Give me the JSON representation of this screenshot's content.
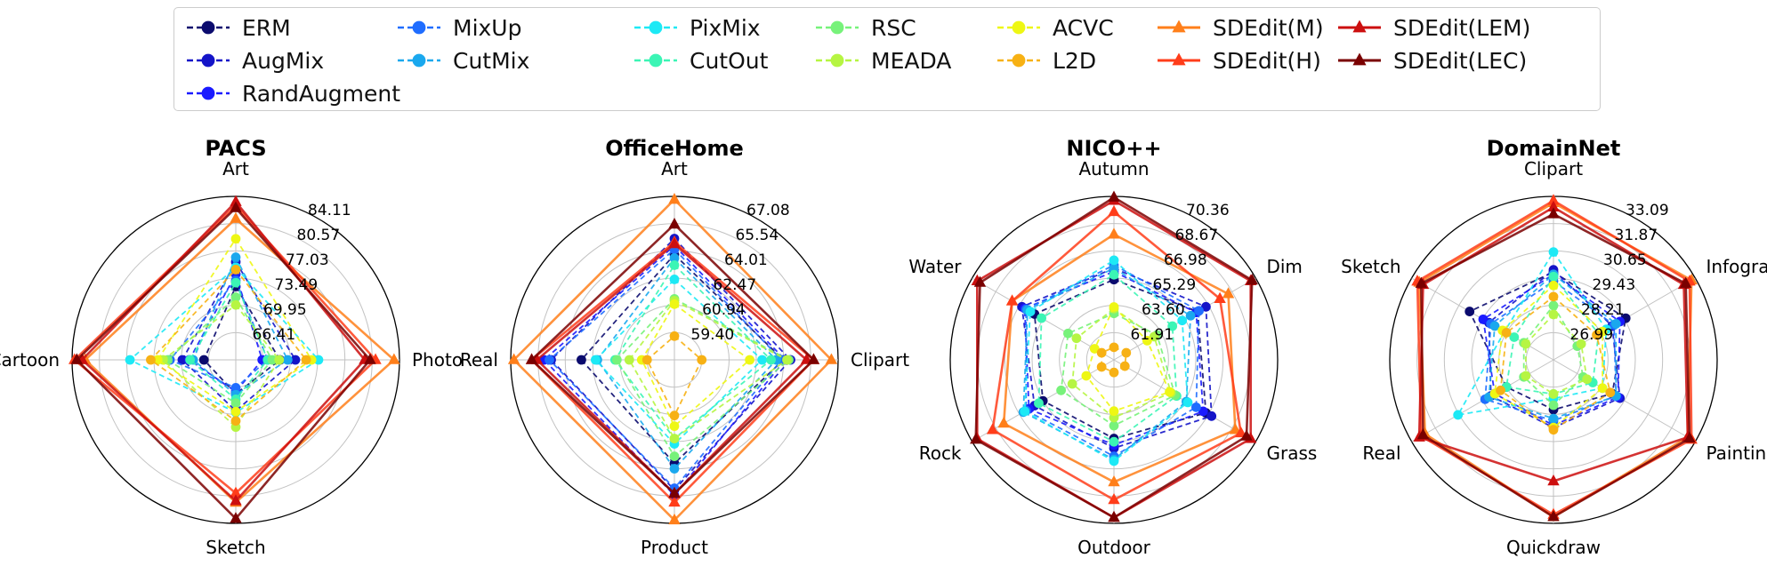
{
  "legend": [
    {
      "name": "ERM",
      "color": "#0b0b6e",
      "style": "dashed",
      "marker": "circle"
    },
    {
      "name": "AugMix",
      "color": "#1414c8",
      "style": "dashed",
      "marker": "circle"
    },
    {
      "name": "RandAugment",
      "color": "#1a1aff",
      "style": "dashed",
      "marker": "circle"
    },
    {
      "name": "MixUp",
      "color": "#1f6dff",
      "style": "dashed",
      "marker": "circle"
    },
    {
      "name": "CutMix",
      "color": "#1aa8ee",
      "style": "dashed",
      "marker": "circle"
    },
    {
      "name": "PixMix",
      "color": "#1de9f5",
      "style": "dashed",
      "marker": "circle"
    },
    {
      "name": "CutOut",
      "color": "#3bf5b5",
      "style": "dashed",
      "marker": "circle"
    },
    {
      "name": "RSC",
      "color": "#77f27a",
      "style": "dashed",
      "marker": "circle"
    },
    {
      "name": "MEADA",
      "color": "#b6f542",
      "style": "dashed",
      "marker": "circle"
    },
    {
      "name": "ACVC",
      "color": "#eef714",
      "style": "dashed",
      "marker": "circle"
    },
    {
      "name": "L2D",
      "color": "#f7b114",
      "style": "dashed",
      "marker": "circle"
    },
    {
      "name": "SDEdit(M)",
      "color": "#ff7f1a",
      "style": "solid",
      "marker": "triangle"
    },
    {
      "name": "SDEdit(H)",
      "color": "#ff3d1a",
      "style": "solid",
      "marker": "triangle"
    },
    {
      "name": "SDEdit(LEM)",
      "color": "#cc0f0f",
      "style": "solid",
      "marker": "triangle"
    },
    {
      "name": "SDEdit(LEC)",
      "color": "#7a0000",
      "style": "solid",
      "marker": "triangle"
    }
  ],
  "chart_data": [
    {
      "type": "radar",
      "title": "PACS",
      "axes": [
        "Art",
        "Photo",
        "Sketch",
        "Cartoon"
      ],
      "r_ticks": [
        "66.41",
        "69.95",
        "73.49",
        "77.03",
        "80.57",
        "84.11"
      ],
      "rlim": [
        62.87,
        84.11
      ],
      "grid": true,
      "series": [
        {
          "name": "ERM",
          "values": [
            72.4,
            68.6,
            67.3,
            67.0
          ]
        },
        {
          "name": "AugMix",
          "values": [
            75.6,
            70.6,
            69.5,
            69.8
          ]
        },
        {
          "name": "RandAugment",
          "values": [
            74.0,
            66.3,
            67.0,
            68.9
          ]
        },
        {
          "name": "MixUp",
          "values": [
            73.2,
            67.0,
            66.5,
            71.4
          ]
        },
        {
          "name": "CutMix",
          "values": [
            76.2,
            69.6,
            67.4,
            68.4
          ]
        },
        {
          "name": "PixMix",
          "values": [
            74.9,
            73.6,
            69.7,
            76.6
          ]
        },
        {
          "name": "CutOut",
          "values": [
            72.9,
            67.0,
            68.0,
            68.8
          ]
        },
        {
          "name": "RSC",
          "values": [
            71.0,
            67.6,
            68.5,
            71.7
          ]
        },
        {
          "name": "MEADA",
          "values": [
            70.0,
            68.5,
            71.6,
            72.3
          ]
        },
        {
          "name": "ACVC",
          "values": [
            78.6,
            72.7,
            69.6,
            73.0
          ]
        },
        {
          "name": "L2D",
          "values": [
            74.6,
            72.0,
            70.8,
            73.9
          ]
        },
        {
          "name": "SDEdit(M)",
          "values": [
            81.2,
            83.4,
            81.4,
            82.4
          ]
        },
        {
          "name": "SDEdit(H)",
          "values": [
            82.9,
            81.0,
            80.2,
            83.8
          ]
        },
        {
          "name": "SDEdit(LEM)",
          "values": [
            83.4,
            79.6,
            81.2,
            82.8
          ]
        },
        {
          "name": "SDEdit(LEC)",
          "values": [
            82.6,
            80.3,
            83.5,
            83.5
          ]
        }
      ]
    },
    {
      "type": "radar",
      "title": "OfficeHome",
      "axes": [
        "Art",
        "Clipart",
        "Product",
        "Real"
      ],
      "r_ticks": [
        "59.40",
        "60.94",
        "62.47",
        "64.01",
        "65.54",
        "67.08"
      ],
      "rlim": [
        57.86,
        67.08
      ],
      "grid": true,
      "series": [
        {
          "name": "ERM",
          "values": [
            63.8,
            64.0,
            63.7,
            63.1
          ]
        },
        {
          "name": "AugMix",
          "values": [
            64.7,
            64.4,
            65.2,
            64.8
          ]
        },
        {
          "name": "RandAugment",
          "values": [
            64.3,
            64.1,
            65.5,
            65.2
          ]
        },
        {
          "name": "MixUp",
          "values": [
            64.1,
            63.9,
            65.1,
            64.9
          ]
        },
        {
          "name": "CutMix",
          "values": [
            63.6,
            63.6,
            64.0,
            62.2
          ]
        },
        {
          "name": "PixMix",
          "values": [
            62.4,
            62.8,
            62.6,
            62.3
          ]
        },
        {
          "name": "CutOut",
          "values": [
            63.2,
            63.3,
            62.3,
            61.2
          ]
        },
        {
          "name": "RSC",
          "values": [
            61.3,
            64.3,
            63.3,
            61.1
          ]
        },
        {
          "name": "MEADA",
          "values": [
            61.2,
            64.2,
            62.3,
            60.4
          ]
        },
        {
          "name": "ACVC",
          "values": [
            61.0,
            62.1,
            61.6,
            59.7
          ]
        },
        {
          "name": "L2D",
          "values": [
            59.2,
            59.4,
            61.0,
            59.4
          ]
        },
        {
          "name": "SDEdit(M)",
          "values": [
            66.9,
            66.7,
            66.9,
            66.9
          ]
        },
        {
          "name": "SDEdit(H)",
          "values": [
            64.5,
            65.7,
            65.9,
            65.9
          ]
        },
        {
          "name": "SDEdit(LEM)",
          "values": [
            64.4,
            65.3,
            65.4,
            65.6
          ]
        },
        {
          "name": "SDEdit(LEC)",
          "values": [
            65.5,
            65.7,
            65.4,
            65.9
          ]
        }
      ]
    },
    {
      "type": "radar",
      "title": "NICO++",
      "axes": [
        "Autumn",
        "Dim",
        "Grass",
        "Outdoor",
        "Rock",
        "Water"
      ],
      "r_ticks": [
        "61.91",
        "63.60",
        "65.29",
        "66.98",
        "68.67",
        "70.36"
      ],
      "rlim": [
        60.22,
        70.36
      ],
      "grid": true,
      "series": [
        {
          "name": "ERM",
          "values": [
            65.2,
            66.2,
            66.8,
            65.1,
            65.3,
            65.9
          ]
        },
        {
          "name": "AugMix",
          "values": [
            65.9,
            66.8,
            67.2,
            65.7,
            65.9,
            66.8
          ]
        },
        {
          "name": "RandAugment",
          "values": [
            65.7,
            66.1,
            66.6,
            65.5,
            66.3,
            66.6
          ]
        },
        {
          "name": "MixUp",
          "values": [
            66.1,
            66.3,
            66.1,
            66.2,
            66.5,
            66.5
          ]
        },
        {
          "name": "CutMix",
          "values": [
            65.9,
            65.7,
            65.4,
            66.4,
            66.7,
            66.4
          ]
        },
        {
          "name": "PixMix",
          "values": [
            66.4,
            65.1,
            65.5,
            66.5,
            66.6,
            66.2
          ]
        },
        {
          "name": "CutOut",
          "values": [
            65.5,
            64.4,
            64.7,
            65.3,
            65.6,
            65.4
          ]
        },
        {
          "name": "RSC",
          "values": [
            63.1,
            63.3,
            64.6,
            64.3,
            64.0,
            63.5
          ]
        },
        {
          "name": "MEADA",
          "values": [
            63.4,
            63.1,
            64.3,
            63.8,
            63.2,
            62.9
          ]
        },
        {
          "name": "ACVC",
          "values": [
            63.5,
            62.6,
            64.2,
            63.4,
            62.2,
            61.6
          ]
        },
        {
          "name": "L2D",
          "values": [
            61.0,
            61.1,
            61.0,
            61.0,
            61.1,
            61.1
          ]
        },
        {
          "name": "SDEdit(M)",
          "values": [
            68.0,
            68.4,
            68.9,
            67.8,
            68.1,
            67.5
          ]
        },
        {
          "name": "SDEdit(H)",
          "values": [
            69.4,
            67.8,
            69.3,
            68.9,
            68.9,
            67.5
          ]
        },
        {
          "name": "SDEdit(LEM)",
          "values": [
            70.1,
            70.0,
            70.0,
            70.0,
            70.0,
            70.0
          ]
        },
        {
          "name": "SDEdit(LEC)",
          "values": [
            70.3,
            70.1,
            69.7,
            70.0,
            70.1,
            69.8
          ]
        }
      ]
    },
    {
      "type": "radar",
      "title": "DomainNet",
      "axes": [
        "Clipart",
        "Infograph",
        "Painting",
        "Quickdraw",
        "Real",
        "Sketch"
      ],
      "r_ticks": [
        "26.99",
        "28.21",
        "29.43",
        "30.65",
        "31.87",
        "33.09"
      ],
      "rlim": [
        25.77,
        33.09
      ],
      "grid": true,
      "series": [
        {
          "name": "ERM",
          "values": [
            29.7,
            29.5,
            28.8,
            28.0,
            28.2,
            30.1
          ]
        },
        {
          "name": "AugMix",
          "values": [
            29.8,
            28.8,
            29.2,
            28.8,
            29.0,
            29.1
          ]
        },
        {
          "name": "RandAugment",
          "values": [
            29.6,
            29.2,
            29.1,
            28.7,
            28.8,
            29.4
          ]
        },
        {
          "name": "MixUp",
          "values": [
            29.3,
            28.9,
            29.0,
            28.5,
            29.3,
            29.0
          ]
        },
        {
          "name": "CutMix",
          "values": [
            29.6,
            29.0,
            29.0,
            28.4,
            29.1,
            28.8
          ]
        },
        {
          "name": "PixMix",
          "values": [
            30.6,
            28.5,
            28.3,
            27.5,
            30.7,
            28.3
          ]
        },
        {
          "name": "CutOut",
          "values": [
            29.5,
            28.1,
            27.8,
            27.3,
            28.2,
            27.8
          ]
        },
        {
          "name": "RSC",
          "values": [
            28.2,
            27.0,
            27.3,
            27.8,
            27.3,
            27.3
          ]
        },
        {
          "name": "MEADA",
          "values": [
            27.8,
            27.2,
            27.5,
            27.3,
            27.2,
            27.2
          ]
        },
        {
          "name": "ACVC",
          "values": [
            29.1,
            28.3,
            28.3,
            28.8,
            28.8,
            28.4
          ]
        },
        {
          "name": "L2D",
          "values": [
            28.6,
            28.0,
            28.7,
            28.9,
            28.5,
            28.2
          ]
        },
        {
          "name": "SDEdit(M)",
          "values": [
            32.8,
            32.9,
            32.7,
            32.8,
            32.4,
            32.7
          ]
        },
        {
          "name": "SDEdit(H)",
          "values": [
            32.9,
            32.8,
            32.9,
            32.7,
            32.6,
            32.8
          ]
        },
        {
          "name": "SDEdit(LEM)",
          "values": [
            32.6,
            32.5,
            32.7,
            31.2,
            32.7,
            32.5
          ]
        },
        {
          "name": "SDEdit(LEC)",
          "values": [
            32.3,
            32.6,
            32.8,
            32.8,
            32.5,
            32.6
          ]
        }
      ]
    }
  ]
}
